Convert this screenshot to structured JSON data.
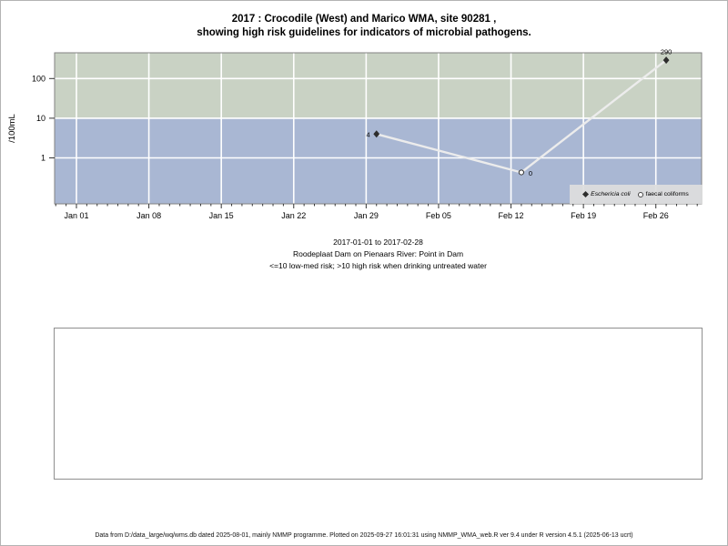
{
  "title": {
    "line1": "2017 : Crocodile (West) and Marico WMA, site 90281 ,",
    "line2": "showing high risk guidelines for indicators of microbial pathogens."
  },
  "chart_data": {
    "type": "line",
    "title": "2017 : Crocodile (West) and Marico WMA, site 90281 , showing high risk guidelines for indicators of microbial pathogens.",
    "ylabel": "/100mL",
    "xlabel": "",
    "y_scale": "log10",
    "ylim": [
      0.07,
      450
    ],
    "y_ticks": [
      100,
      10,
      1
    ],
    "x_tick_labels": [
      "Jan 01",
      "Jan 08",
      "Jan 15",
      "Jan 22",
      "Jan 29",
      "Feb 05",
      "Feb 12",
      "Feb 19",
      "Feb 26"
    ],
    "x_tick_days": [
      0,
      7,
      14,
      21,
      28,
      35,
      42,
      49,
      56
    ],
    "minor_ticks": "daily",
    "grid": true,
    "legend_position": "bottom-right",
    "bands": [
      {
        "name": "high risk (>10)",
        "from": 10,
        "to": 450,
        "color": "#c9d2c4"
      },
      {
        "name": "low-med risk (<=10)",
        "from": 0.07,
        "to": 10,
        "color": "#a9b7d3"
      }
    ],
    "series": [
      {
        "name": "Eschericia coli",
        "marker": "filled-diamond",
        "points": [
          {
            "date": "2017-01-30",
            "day": 29,
            "value": 4,
            "label": "4",
            "label_pos": "left"
          },
          {
            "date": "2017-02-27",
            "day": 57,
            "value": 290,
            "label": "290",
            "label_pos": "above"
          }
        ]
      },
      {
        "name": "faecal coliforms",
        "marker": "open-circle",
        "points": [
          {
            "date": "2017-02-13",
            "day": 43,
            "value": 0,
            "label": "0",
            "label_pos": "right"
          }
        ]
      }
    ],
    "zero_plot_value": 0.43,
    "line_color": "#ececec",
    "marker_color": "#2d2d2d"
  },
  "legend": {
    "items": [
      {
        "marker": "filled-diamond",
        "label": "Eschericia coli"
      },
      {
        "marker": "open-circle",
        "label": "faecal coliforms"
      }
    ]
  },
  "subtitle": {
    "line1": "2017-01-01 to 2017-02-28",
    "line2": "Roodeplaat Dam on Pienaars River: Point in Dam",
    "line3": "<=10 low-med risk; >10 high risk when drinking untreated water"
  },
  "footer": "Data from D:/data_large/wq/wms.db dated 2025-08-01, mainly NMMP programme. Plotted on 2025-09-27 16:01:31 using NMMP_WMA_web.R ver 9.4 under R version 4.5.1 (2025-06-13 ucrt)"
}
